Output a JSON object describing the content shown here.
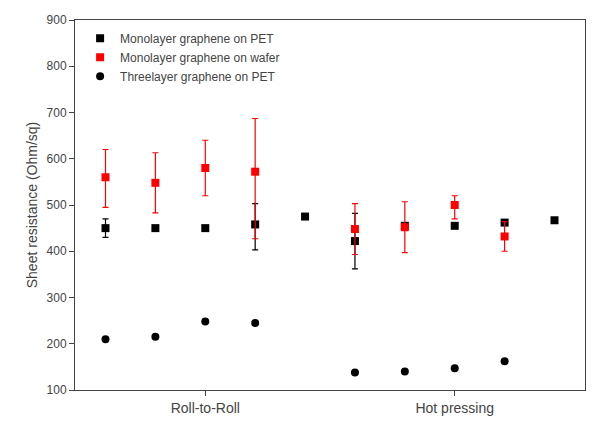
{
  "chart_data": {
    "type": "scatter",
    "categories": [
      null,
      null,
      "Roll-to-Roll",
      null,
      null,
      null,
      null,
      "Hot pressing",
      null,
      null
    ],
    "y_label": "Sheet resistance (Ohm/sq)",
    "ylim": [
      100,
      900
    ],
    "yticks": [
      100,
      200,
      300,
      400,
      500,
      600,
      700,
      800,
      900
    ],
    "grid": false,
    "legend": "upper left",
    "series": [
      {
        "name": "Monolayer graphene on PET",
        "color": "#000000",
        "marker": "square",
        "values": [
          450,
          450,
          450,
          458,
          475,
          422,
          455,
          455,
          462,
          467
        ],
        "error_lo": [
          20,
          0,
          0,
          55,
          0,
          60,
          0,
          0,
          0,
          0
        ],
        "error_hi": [
          20,
          0,
          0,
          45,
          0,
          60,
          0,
          0,
          0,
          0
        ]
      },
      {
        "name": "Monolayer graphene on wafer",
        "color": "#ff0000",
        "marker": "square",
        "values": [
          560,
          548,
          580,
          572,
          null,
          448,
          452,
          500,
          432,
          null
        ],
        "error_lo": [
          65,
          65,
          60,
          145,
          0,
          55,
          55,
          30,
          32,
          0
        ],
        "error_hi": [
          60,
          65,
          60,
          115,
          0,
          55,
          55,
          20,
          32,
          0
        ]
      },
      {
        "name": "Threelayer graphene on PET",
        "color": "#000000",
        "marker": "circle",
        "values": [
          210,
          215,
          248,
          245,
          null,
          138,
          140,
          147,
          162,
          null
        ],
        "error_lo": [
          0,
          0,
          0,
          0,
          0,
          0,
          0,
          0,
          0,
          0
        ],
        "error_hi": [
          0,
          0,
          0,
          0,
          0,
          0,
          0,
          0,
          0,
          0
        ]
      }
    ]
  }
}
